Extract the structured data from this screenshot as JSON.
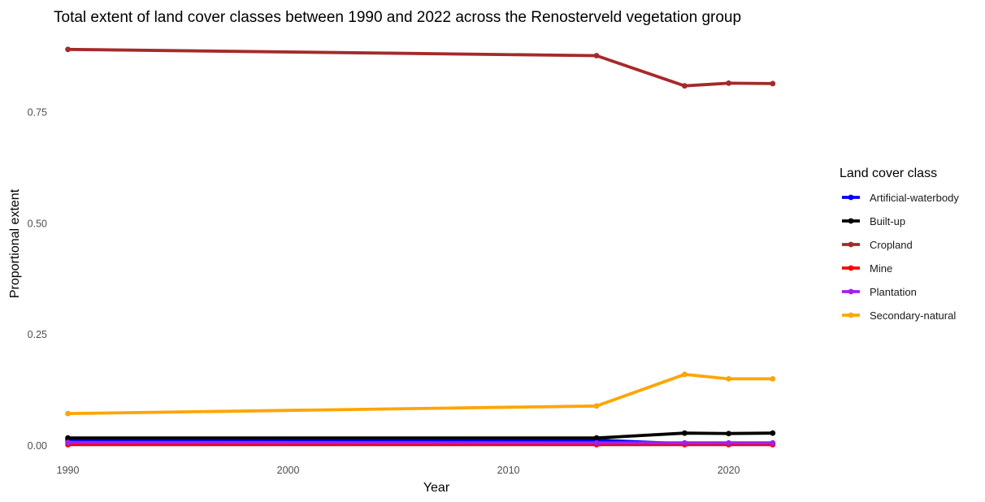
{
  "chart_data": {
    "type": "line",
    "title": "Total extent of land cover classes between 1990 and 2022 across the Renosterveld vegetation group",
    "xlabel": "Year",
    "ylabel": "Proportional extent",
    "x_ticks": [
      1990,
      2000,
      2010,
      2020
    ],
    "y_ticks": [
      "0.00",
      "0.25",
      "0.50",
      "0.75"
    ],
    "xlim": [
      1989.5,
      2024
    ],
    "ylim": [
      -0.02,
      0.93
    ],
    "legend_title": "Land cover class",
    "legend_position": "right",
    "grid": false,
    "x": [
      1990,
      2014,
      2018,
      2020,
      2022
    ],
    "series": [
      {
        "name": "Artificial-waterbody",
        "color": "#0000FF",
        "values": [
          0.013,
          0.013,
          0.005,
          0.005,
          0.005
        ]
      },
      {
        "name": "Built-up",
        "color": "#000000",
        "values": [
          0.018,
          0.018,
          0.029,
          0.028,
          0.029
        ]
      },
      {
        "name": "Cropland",
        "color": "#A52A2A",
        "values": [
          0.892,
          0.878,
          0.81,
          0.816,
          0.815
        ]
      },
      {
        "name": "Mine",
        "color": "#FF0000",
        "values": [
          0.003,
          0.003,
          0.003,
          0.003,
          0.003
        ]
      },
      {
        "name": "Plantation",
        "color": "#A020F0",
        "values": [
          0.008,
          0.007,
          0.007,
          0.007,
          0.007
        ]
      },
      {
        "name": "Secondary-natural",
        "color": "#FFA500",
        "values": [
          0.073,
          0.09,
          0.161,
          0.151,
          0.151
        ]
      }
    ]
  }
}
